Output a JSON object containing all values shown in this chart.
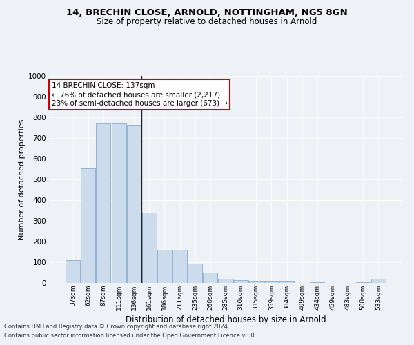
{
  "title1": "14, BRECHIN CLOSE, ARNOLD, NOTTINGHAM, NG5 8GN",
  "title2": "Size of property relative to detached houses in Arnold",
  "xlabel": "Distribution of detached houses by size in Arnold",
  "ylabel": "Number of detached properties",
  "bar_color": "#ccdcec",
  "bar_edge_color": "#88aacc",
  "vline_color": "#222222",
  "vline_x_index": 4,
  "categories": [
    "37sqm",
    "62sqm",
    "87sqm",
    "111sqm",
    "136sqm",
    "161sqm",
    "186sqm",
    "211sqm",
    "235sqm",
    "260sqm",
    "285sqm",
    "310sqm",
    "335sqm",
    "359sqm",
    "384sqm",
    "409sqm",
    "434sqm",
    "459sqm",
    "483sqm",
    "508sqm",
    "533sqm"
  ],
  "values": [
    110,
    555,
    775,
    775,
    765,
    340,
    160,
    160,
    95,
    50,
    20,
    15,
    10,
    10,
    10,
    0,
    5,
    0,
    0,
    5,
    20
  ],
  "ylim": [
    0,
    1000
  ],
  "yticks": [
    0,
    100,
    200,
    300,
    400,
    500,
    600,
    700,
    800,
    900,
    1000
  ],
  "annotation_text": "14 BRECHIN CLOSE: 137sqm\n← 76% of detached houses are smaller (2,217)\n23% of semi-detached houses are larger (673) →",
  "annotation_box_color": "#ffffff",
  "annotation_box_edge": "#cc0000",
  "footer1": "Contains HM Land Registry data © Crown copyright and database right 2024.",
  "footer2": "Contains public sector information licensed under the Open Government Licence v3.0.",
  "background_color": "#eef2f7",
  "grid_color": "#ffffff"
}
